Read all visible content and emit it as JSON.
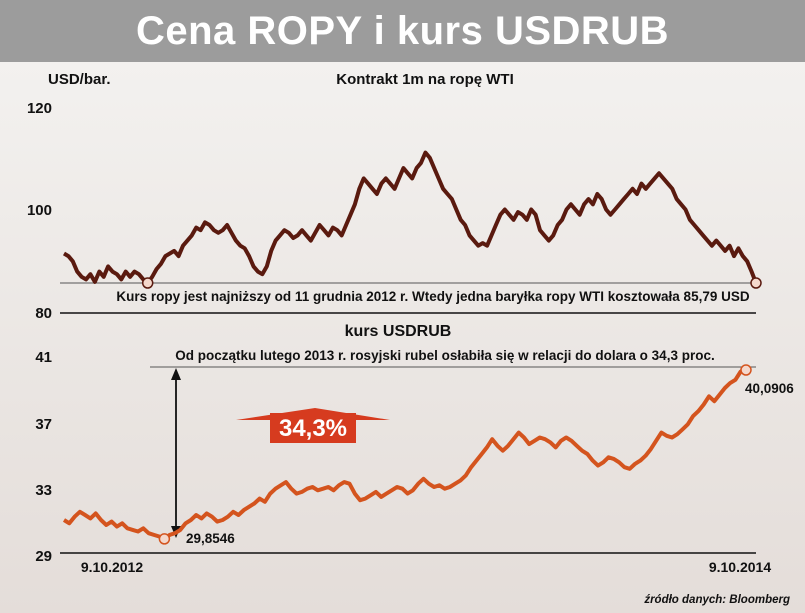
{
  "title": "Cena ROPY i kurs USDRUB",
  "source": "źródło danych: Bloomberg",
  "colors": {
    "oil": "#5a1a0f",
    "rub": "#d4541e",
    "arrow_badge": "#d63b1f"
  },
  "chart_data": [
    {
      "type": "line",
      "title": "Kontrakt 1m  na ropę WTI",
      "ylabel": "USD/bar.",
      "ylim": [
        80,
        120
      ],
      "yticks": [
        "120",
        "100",
        "80"
      ],
      "annotation": "Kurs ropy jest najniższy od 11 grudnia 2012 r. Wtedy jedna baryłka ropy WTI kosztowała 85,79 USD",
      "series": [
        {
          "x_start": "9.10.2012",
          "x_end": "9.10.2014",
          "values": [
            91.5,
            91,
            90,
            88,
            87,
            86.5,
            87.5,
            86,
            88,
            87,
            89,
            88,
            87.5,
            86.5,
            88,
            87,
            88,
            87.5,
            86.5,
            85.79,
            87,
            88.5,
            89.5,
            91,
            91.5,
            92,
            91,
            93,
            94,
            95,
            96.5,
            96,
            97.5,
            97,
            96,
            95.5,
            96,
            97,
            95.5,
            94,
            93,
            92.5,
            91,
            89,
            88,
            87.5,
            89,
            92,
            94,
            95,
            96,
            95.5,
            94.5,
            95,
            96,
            95,
            94,
            95.5,
            97,
            96,
            95,
            96.5,
            96,
            95,
            97,
            99,
            101,
            104,
            106,
            105,
            104,
            103,
            105,
            106,
            105,
            104,
            106,
            108,
            107,
            106,
            108,
            109,
            111,
            110,
            108,
            106,
            104,
            103,
            102,
            100,
            98,
            97,
            95,
            94,
            93,
            93.5,
            93,
            95,
            97,
            99,
            100,
            99,
            98,
            99.5,
            99,
            98,
            100,
            99,
            96,
            95,
            94,
            95,
            97,
            98,
            100,
            101,
            100,
            99,
            101,
            102,
            101,
            103,
            102,
            100,
            99,
            100,
            101,
            102,
            103,
            104,
            103,
            105,
            104,
            105,
            106,
            107,
            106,
            105,
            104,
            102,
            101,
            100,
            98,
            97,
            96,
            95,
            94,
            93,
            94,
            93,
            92,
            93,
            91,
            92.5,
            91,
            90,
            88,
            85.79
          ]
        }
      ]
    },
    {
      "type": "line",
      "title": "kurs USDRUB",
      "ylim": [
        29,
        41
      ],
      "yticks": [
        "41",
        "37",
        "33",
        "29"
      ],
      "xticks": [
        "9.10.2012",
        "9.10.2014"
      ],
      "annotation": "Od początku lutego 2013 r. rosyjski rubel osłabiła się w relacji do dolara o 34,3 proc.",
      "change_label": "34,3%",
      "start_label": "29,8546",
      "end_label": "40,0906",
      "series": [
        {
          "values": [
            31.0,
            30.8,
            31.2,
            31.5,
            31.3,
            31.1,
            31.4,
            31.0,
            30.7,
            30.9,
            30.6,
            30.8,
            30.5,
            30.4,
            30.3,
            30.5,
            30.2,
            30.1,
            30.0,
            29.8546,
            30.1,
            30.2,
            30.4,
            30.8,
            31.0,
            31.3,
            31.1,
            31.4,
            31.2,
            30.9,
            31.0,
            31.2,
            31.5,
            31.3,
            31.6,
            31.8,
            32.0,
            32.3,
            32.1,
            32.6,
            32.9,
            33.1,
            33.3,
            32.9,
            32.6,
            32.7,
            32.9,
            33.0,
            32.8,
            32.9,
            33.0,
            32.8,
            33.1,
            33.3,
            33.2,
            32.6,
            32.2,
            32.3,
            32.5,
            32.7,
            32.4,
            32.6,
            32.8,
            33.0,
            32.9,
            32.6,
            32.8,
            33.2,
            33.5,
            33.2,
            33.0,
            33.1,
            32.9,
            33.0,
            33.2,
            33.4,
            33.7,
            34.2,
            34.6,
            35.0,
            35.4,
            35.9,
            35.5,
            35.2,
            35.5,
            35.9,
            36.3,
            36.0,
            35.6,
            35.8,
            36.0,
            35.9,
            35.7,
            35.4,
            35.8,
            36.0,
            35.8,
            35.5,
            35.2,
            35.0,
            34.6,
            34.3,
            34.5,
            34.8,
            34.7,
            34.5,
            34.2,
            34.1,
            34.4,
            34.6,
            34.9,
            35.3,
            35.8,
            36.3,
            36.1,
            36.0,
            36.2,
            36.5,
            36.8,
            37.3,
            37.6,
            38.0,
            38.5,
            38.2,
            38.6,
            39.0,
            39.3,
            39.5,
            40.0,
            40.0906
          ]
        }
      ]
    }
  ]
}
